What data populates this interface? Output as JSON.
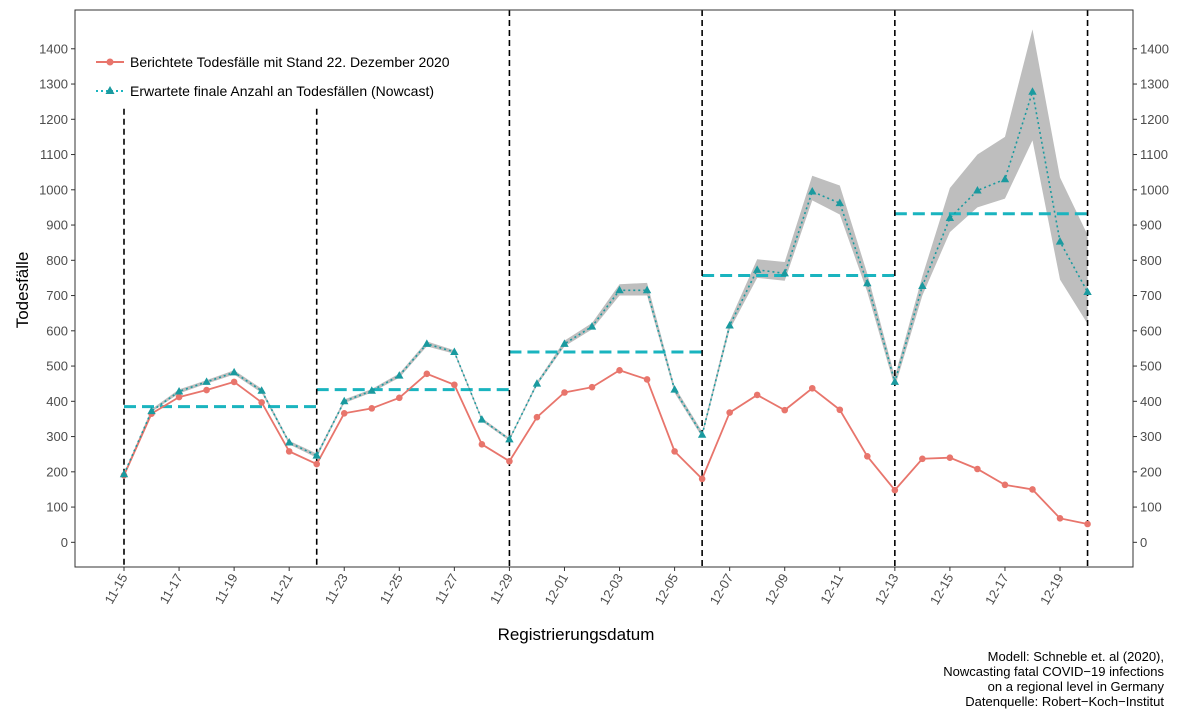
{
  "chart_data": {
    "type": "line",
    "xlabel": "Registrierungsdatum",
    "ylabel": "Todesfälle",
    "ylim": [
      -70,
      1510
    ],
    "yticks": [
      0,
      100,
      200,
      300,
      400,
      500,
      600,
      700,
      800,
      900,
      1000,
      1100,
      1200,
      1300,
      1400
    ],
    "dates": [
      "11-15",
      "11-16",
      "11-17",
      "11-18",
      "11-19",
      "11-20",
      "11-21",
      "11-22",
      "11-23",
      "11-24",
      "11-25",
      "11-26",
      "11-27",
      "11-28",
      "11-29",
      "11-30",
      "12-01",
      "12-02",
      "12-03",
      "12-04",
      "12-05",
      "12-06",
      "12-07",
      "12-08",
      "12-09",
      "12-10",
      "12-11",
      "12-12",
      "12-13",
      "12-14",
      "12-15",
      "12-16",
      "12-17",
      "12-18",
      "12-19",
      "12-20"
    ],
    "xtick_labels": [
      "11-15",
      "11-17",
      "11-19",
      "11-21",
      "11-23",
      "11-25",
      "11-27",
      "11-29",
      "12-01",
      "12-03",
      "12-05",
      "12-07",
      "12-09",
      "12-11",
      "12-13",
      "12-15",
      "12-17",
      "12-19"
    ],
    "series": [
      {
        "name": "Berichtete Todesfälle mit Stand 22. Dezember 2020",
        "color": "#e8756c",
        "marker": "circle",
        "values": [
          190,
          365,
          412,
          432,
          455,
          397,
          258,
          222,
          366,
          380,
          410,
          478,
          447,
          278,
          230,
          355,
          425,
          440,
          488,
          462,
          258,
          180,
          368,
          418,
          375,
          437,
          376,
          244,
          148,
          237,
          240,
          208,
          163,
          150,
          68,
          52
        ]
      },
      {
        "name": "Erwartete finale Anzahl an Todesfällen (Nowcast)",
        "color": "#1ab4bf",
        "marker": "triangle",
        "values": [
          193,
          372,
          428,
          455,
          482,
          430,
          283,
          246,
          400,
          430,
          473,
          563,
          540,
          348,
          292,
          450,
          563,
          612,
          715,
          715,
          433,
          305,
          615,
          773,
          763,
          995,
          962,
          735,
          455,
          727,
          920,
          998,
          1030,
          1278,
          853,
          710
        ]
      }
    ],
    "ci_band": {
      "lower": [
        190,
        370,
        422,
        450,
        476,
        424,
        278,
        240,
        395,
        425,
        467,
        556,
        535,
        343,
        288,
        445,
        556,
        604,
        700,
        700,
        424,
        298,
        603,
        750,
        742,
        970,
        930,
        710,
        440,
        700,
        880,
        950,
        975,
        1140,
        745,
        620
      ],
      "upper": [
        196,
        378,
        434,
        460,
        488,
        436,
        288,
        252,
        405,
        435,
        479,
        570,
        545,
        353,
        296,
        455,
        572,
        622,
        732,
        736,
        442,
        314,
        627,
        803,
        795,
        1040,
        1012,
        762,
        470,
        755,
        1005,
        1100,
        1150,
        1455,
        1035,
        872
      ]
    },
    "weekly_means": [
      {
        "start": "11-15",
        "end": "11-22",
        "value": 385
      },
      {
        "start": "11-22",
        "end": "11-29",
        "value": 433
      },
      {
        "start": "11-29",
        "end": "12-06",
        "value": 540
      },
      {
        "start": "12-06",
        "end": "12-13",
        "value": 757
      },
      {
        "start": "12-13",
        "end": "12-20",
        "value": 932
      }
    ],
    "week_boundaries": [
      "11-15",
      "11-22",
      "11-29",
      "12-06",
      "12-13",
      "12-20"
    ],
    "legend_position": "top-left",
    "grid": false,
    "caption": [
      "Modell: Schneble et. al (2020),",
      "Nowcasting fatal COVID−19 infections",
      "on a regional level in Germany",
      "Datenquelle: Robert−Koch−Institut"
    ]
  }
}
